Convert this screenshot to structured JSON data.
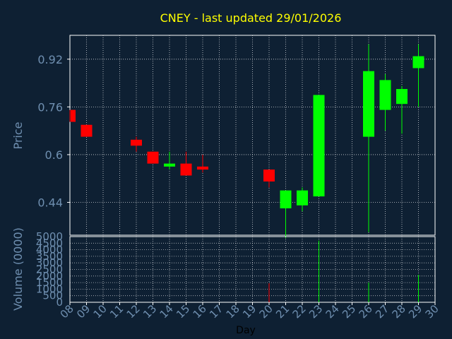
{
  "chart_data": [
    {
      "type": "candlestick",
      "title": "CNEY - last updated 29/01/2026",
      "ylabel": "Price",
      "ylim": [
        0.33,
        1.0
      ],
      "yticks": [
        "0.44",
        "0.6",
        "0.76",
        "0.92"
      ],
      "ytick_values": [
        0.44,
        0.6,
        0.76,
        0.92
      ],
      "grid": true,
      "colors": {
        "up": "#00ff00",
        "down": "#ff0000",
        "grid": "#ffffff",
        "text": "#6f8fb0",
        "title": "#ffff00",
        "background": "#0e2033"
      },
      "candles": [
        {
          "day": "08",
          "open": 0.75,
          "high": 0.75,
          "low": 0.71,
          "close": 0.71
        },
        {
          "day": "09",
          "open": 0.7,
          "high": 0.7,
          "low": 0.66,
          "close": 0.66
        },
        {
          "day": "12",
          "open": 0.65,
          "high": 0.66,
          "low": 0.61,
          "close": 0.63
        },
        {
          "day": "13",
          "open": 0.61,
          "high": 0.61,
          "low": 0.57,
          "close": 0.57
        },
        {
          "day": "14",
          "open": 0.56,
          "high": 0.61,
          "low": 0.55,
          "close": 0.57
        },
        {
          "day": "15",
          "open": 0.57,
          "high": 0.61,
          "low": 0.53,
          "close": 0.53
        },
        {
          "day": "16",
          "open": 0.56,
          "high": 0.6,
          "low": 0.54,
          "close": 0.55
        },
        {
          "day": "20",
          "open": 0.55,
          "high": 0.55,
          "low": 0.49,
          "close": 0.51
        },
        {
          "day": "21",
          "open": 0.42,
          "high": 0.48,
          "low": 0.32,
          "close": 0.48
        },
        {
          "day": "22",
          "open": 0.43,
          "high": 0.49,
          "low": 0.41,
          "close": 0.48
        },
        {
          "day": "23",
          "open": 0.46,
          "high": 0.8,
          "low": 0.46,
          "close": 0.8
        },
        {
          "day": "26",
          "open": 0.66,
          "high": 0.97,
          "low": 0.34,
          "close": 0.88
        },
        {
          "day": "27",
          "open": 0.75,
          "high": 0.87,
          "low": 0.68,
          "close": 0.85
        },
        {
          "day": "28",
          "open": 0.77,
          "high": 0.83,
          "low": 0.67,
          "close": 0.82
        },
        {
          "day": "29",
          "open": 0.89,
          "high": 0.97,
          "low": 0.76,
          "close": 0.93
        }
      ]
    },
    {
      "type": "bar",
      "ylabel": "Volume (0000)",
      "xlabel": "Day",
      "ylim": [
        0,
        5000
      ],
      "yticks": [
        "0",
        "500",
        "1000",
        "1500",
        "2000",
        "2500",
        "3000",
        "3500",
        "4000",
        "4500",
        "5000"
      ],
      "ytick_values": [
        0,
        500,
        1000,
        1500,
        2000,
        2500,
        3000,
        3500,
        4000,
        4500,
        5000
      ],
      "x_ticks": [
        "08",
        "09",
        "10",
        "11",
        "12",
        "13",
        "14",
        "15",
        "16",
        "17",
        "18",
        "19",
        "20",
        "21",
        "22",
        "23",
        "24",
        "25",
        "26",
        "27",
        "28",
        "29",
        "30"
      ],
      "bars": [
        {
          "day": "20",
          "value": 1450,
          "color": "#ff0000"
        },
        {
          "day": "23",
          "value": 4700,
          "color": "#00ff00"
        },
        {
          "day": "26",
          "value": 1500,
          "color": "#00ff00"
        },
        {
          "day": "29",
          "value": 2100,
          "color": "#00ff00"
        }
      ]
    }
  ]
}
